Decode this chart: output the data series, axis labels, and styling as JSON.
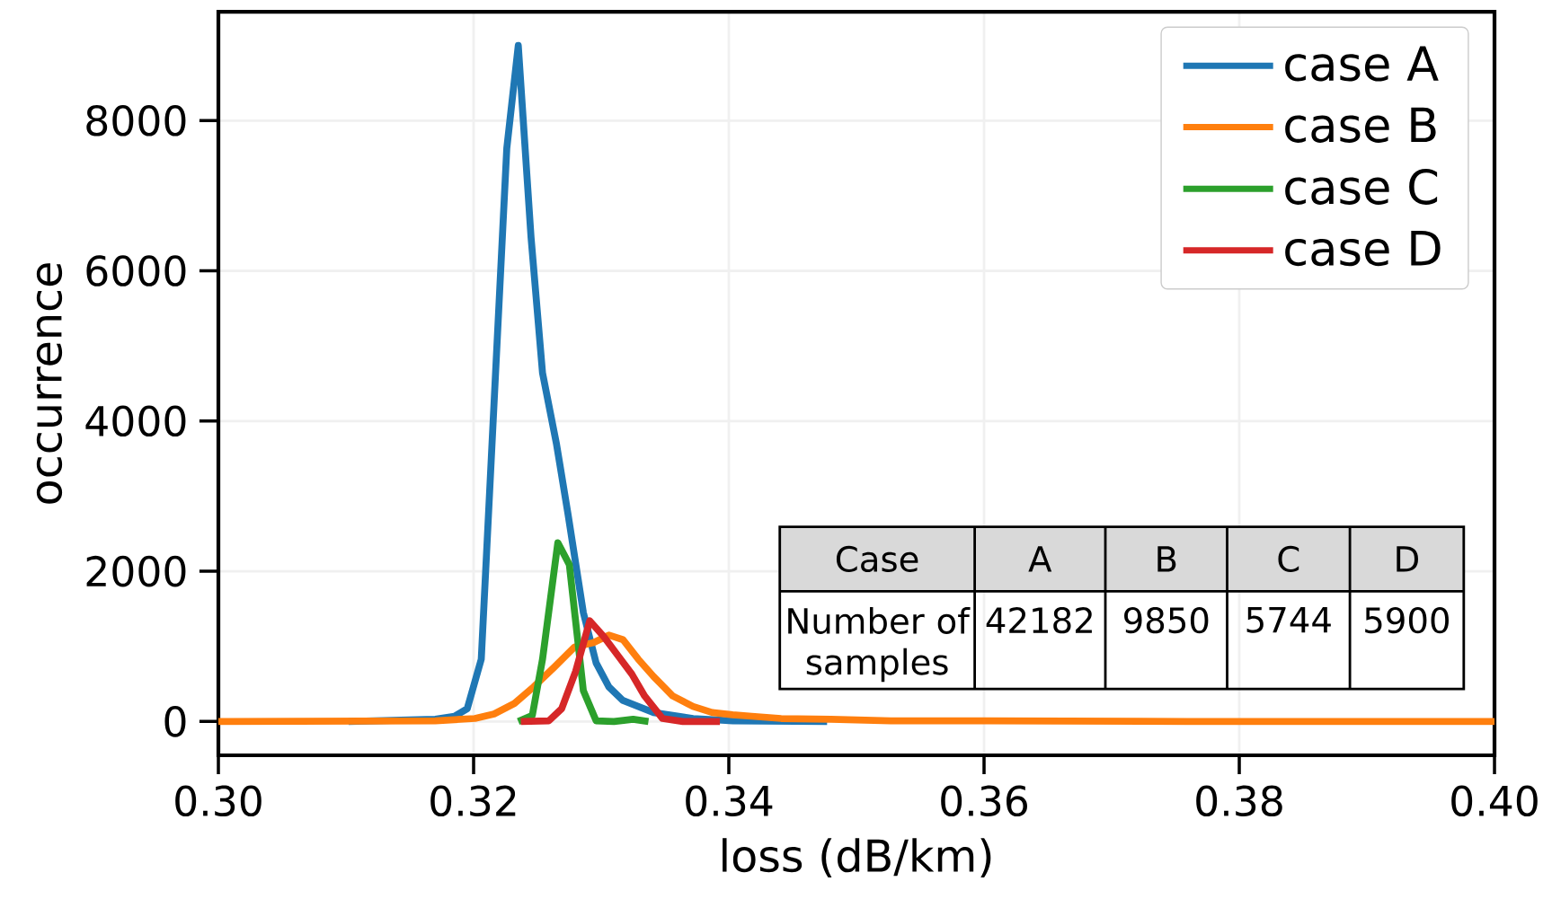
{
  "chart_data": {
    "type": "line",
    "xlabel": "loss (dB/km)",
    "ylabel": "occurrence",
    "xlim": [
      0.3,
      0.4
    ],
    "ylim": [
      -450,
      9450
    ],
    "xticks": [
      {
        "value": 0.3,
        "label": "0.30"
      },
      {
        "value": 0.32,
        "label": "0.32"
      },
      {
        "value": 0.34,
        "label": "0.34"
      },
      {
        "value": 0.36,
        "label": "0.36"
      },
      {
        "value": 0.38,
        "label": "0.38"
      },
      {
        "value": 0.4,
        "label": "0.40"
      }
    ],
    "yticks": [
      0,
      2000,
      4000,
      6000,
      8000
    ],
    "grid": true,
    "legend": "top right",
    "line_style": "solid",
    "marker": "none",
    "series": [
      {
        "name": "case A",
        "color": "#1f77b4",
        "x": [
          0.3102,
          0.317,
          0.3185,
          0.3195,
          0.3206,
          0.3226,
          0.3235,
          0.3245,
          0.3254,
          0.3265,
          0.3274,
          0.3286,
          0.3296,
          0.3306,
          0.3317,
          0.3341,
          0.3372,
          0.3403,
          0.3477
        ],
        "values": [
          0,
          30,
          70,
          170,
          830,
          7630,
          9000,
          6450,
          4640,
          3690,
          2760,
          1450,
          780,
          460,
          280,
          120,
          40,
          10,
          0
        ]
      },
      {
        "name": "case B",
        "color": "#ff7f0e",
        "x": [
          0.3,
          0.317,
          0.3201,
          0.3216,
          0.3232,
          0.3247,
          0.3263,
          0.3279,
          0.3294,
          0.3306,
          0.3317,
          0.3329,
          0.3341,
          0.3356,
          0.3372,
          0.3387,
          0.3403,
          0.3418,
          0.3441,
          0.348,
          0.3527,
          0.3604,
          0.3759,
          0.4
        ],
        "values": [
          0,
          10,
          40,
          100,
          240,
          460,
          720,
          990,
          1050,
          1150,
          1090,
          830,
          600,
          340,
          200,
          120,
          90,
          70,
          40,
          30,
          10,
          10,
          0,
          0
        ]
      },
      {
        "name": "case C",
        "color": "#2ca02c",
        "x": [
          0.3235,
          0.3246,
          0.3254,
          0.3266,
          0.3275,
          0.3286,
          0.3296,
          0.331,
          0.3325,
          0.3337
        ],
        "values": [
          0,
          80,
          830,
          2380,
          2090,
          410,
          10,
          0,
          30,
          0
        ]
      },
      {
        "name": "case D",
        "color": "#d62728",
        "x": [
          0.3237,
          0.3259,
          0.3269,
          0.328,
          0.3291,
          0.3302,
          0.3313,
          0.3324,
          0.3334,
          0.3348,
          0.3364,
          0.3393
        ],
        "values": [
          0,
          10,
          170,
          670,
          1340,
          1130,
          880,
          630,
          340,
          40,
          0,
          0
        ]
      }
    ],
    "annotations": [
      "Case",
      "A",
      "B",
      "C",
      "D",
      "Number of samples",
      "42182",
      "9850",
      "5744",
      "5900"
    ]
  }
}
